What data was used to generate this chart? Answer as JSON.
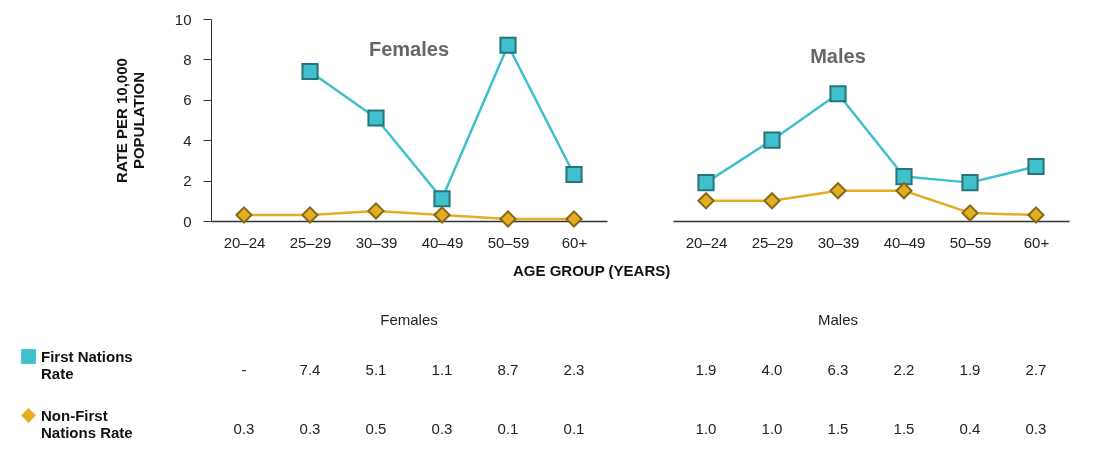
{
  "chart_data": [
    {
      "type": "line",
      "title": "Females",
      "xlabel": "AGE GROUP (YEARS)",
      "ylabel": "RATE PER 10,000 POPULATION",
      "categories": [
        "20–24",
        "25–29",
        "30–39",
        "40–49",
        "50–59",
        "60+"
      ],
      "ylim": [
        0,
        10
      ],
      "yticks": [
        0,
        2,
        4,
        6,
        8,
        10
      ],
      "legend": "bottom left",
      "series": [
        {
          "name": "First Nations Rate",
          "color": "#3fc0cc",
          "marker": "square",
          "values": [
            null,
            7.4,
            5.1,
            1.1,
            8.7,
            2.3
          ],
          "value_labels": [
            "-",
            "7.4",
            "5.1",
            "1.1",
            "8.7",
            "2.3"
          ]
        },
        {
          "name": "Non-First Nations Rate",
          "color": "#e3ad24",
          "marker": "diamond",
          "values": [
            0.3,
            0.3,
            0.5,
            0.3,
            0.1,
            0.1
          ],
          "value_labels": [
            "0.3",
            "0.3",
            "0.5",
            "0.3",
            "0.1",
            "0.1"
          ]
        }
      ]
    },
    {
      "type": "line",
      "title": "Males",
      "categories": [
        "20–24",
        "25–29",
        "30–39",
        "40–49",
        "50–59",
        "60+"
      ],
      "ylim": [
        0,
        10
      ],
      "tick_labels": "x",
      "series": [
        {
          "name": "First Nations Rate",
          "color": "#3fc0cc",
          "marker": "square",
          "values": [
            1.9,
            4.0,
            6.3,
            2.2,
            1.9,
            2.7
          ],
          "value_labels": [
            "1.9",
            "4.0",
            "6.3",
            "2.2",
            "1.9",
            "2.7"
          ]
        },
        {
          "name": "Non-First Nations Rate",
          "color": "#e3ad24",
          "marker": "diamond",
          "values": [
            1.0,
            1.0,
            1.5,
            1.5,
            0.4,
            0.3
          ],
          "value_labels": [
            "1.0",
            "1.0",
            "1.5",
            "1.5",
            "0.4",
            "0.3"
          ]
        }
      ]
    }
  ]
}
